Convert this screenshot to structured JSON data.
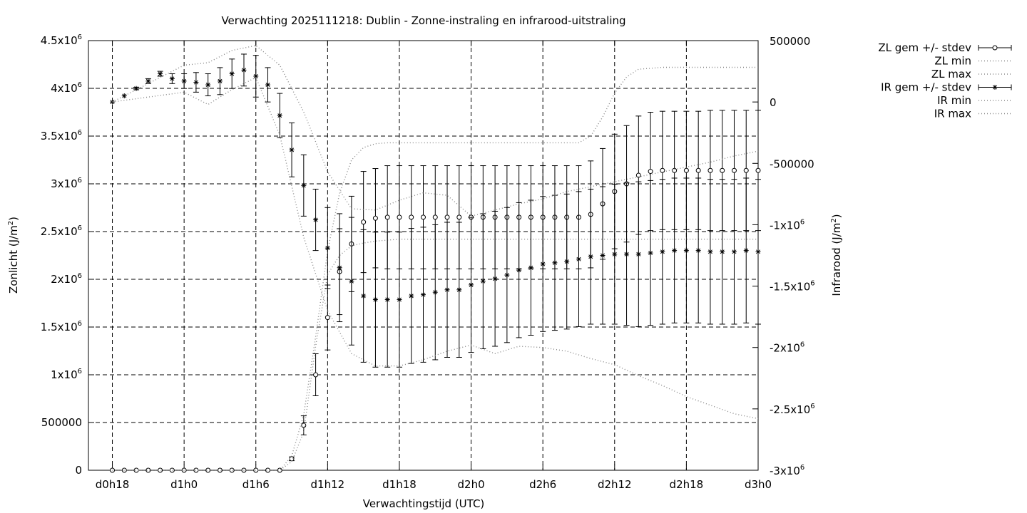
{
  "chart_data": {
    "type": "line",
    "title": "Verwachting 2025111218: Dublin - Zonne-instraling en infrarood-uitstraling",
    "xlabel": "Verwachtingstijd (UTC)",
    "ylabel": "Zonlicht (J/m²)",
    "y2label": "Infrarood (J/m²)",
    "x_unit": "hours since forecast start (d0h18 = 0)",
    "xlim": [
      -2,
      54
    ],
    "ylim": [
      0,
      4500000
    ],
    "y2lim": [
      -3000000,
      500000
    ],
    "grid": true,
    "legend_position": "top-right outside",
    "x_ticks": [
      {
        "v": 0,
        "label": "d0h18"
      },
      {
        "v": 6,
        "label": "d1h0"
      },
      {
        "v": 12,
        "label": "d1h6"
      },
      {
        "v": 18,
        "label": "d1h12"
      },
      {
        "v": 24,
        "label": "d1h18"
      },
      {
        "v": 30,
        "label": "d2h0"
      },
      {
        "v": 36,
        "label": "d2h6"
      },
      {
        "v": 42,
        "label": "d2h12"
      },
      {
        "v": 48,
        "label": "d2h18"
      },
      {
        "v": 54,
        "label": "d3h0"
      }
    ],
    "y_ticks": [
      {
        "v": 0,
        "base": "0",
        "exp": ""
      },
      {
        "v": 500000,
        "base": "500000",
        "exp": ""
      },
      {
        "v": 1000000,
        "base": "1x10",
        "exp": "6"
      },
      {
        "v": 1500000,
        "base": "1.5x10",
        "exp": "6"
      },
      {
        "v": 2000000,
        "base": "2x10",
        "exp": "6"
      },
      {
        "v": 2500000,
        "base": "2.5x10",
        "exp": "6"
      },
      {
        "v": 3000000,
        "base": "3x10",
        "exp": "6"
      },
      {
        "v": 3500000,
        "base": "3.5x10",
        "exp": "6"
      },
      {
        "v": 4000000,
        "base": "4x10",
        "exp": "6"
      },
      {
        "v": 4500000,
        "base": "4.5x10",
        "exp": "6"
      }
    ],
    "y2_ticks": [
      {
        "v": 500000,
        "base": "500000",
        "exp": ""
      },
      {
        "v": 0,
        "base": "0",
        "exp": ""
      },
      {
        "v": -500000,
        "base": "-500000",
        "exp": ""
      },
      {
        "v": -1000000,
        "base": "-1x10",
        "exp": "6"
      },
      {
        "v": -1500000,
        "base": "-1.5x10",
        "exp": "6"
      },
      {
        "v": -2000000,
        "base": "-2x10",
        "exp": "6"
      },
      {
        "v": -2500000,
        "base": "-2.5x10",
        "exp": "6"
      },
      {
        "v": -3000000,
        "base": "-3x10",
        "exp": "6"
      }
    ],
    "series": [
      {
        "name": "ZL gem +/- stdev",
        "axis": "y",
        "marker": "circle",
        "x": [
          0,
          1,
          2,
          3,
          4,
          5,
          6,
          7,
          8,
          9,
          10,
          11,
          12,
          13,
          14,
          15,
          16,
          17,
          18,
          19,
          20,
          21,
          22,
          23,
          24,
          25,
          26,
          27,
          28,
          29,
          30,
          31,
          32,
          33,
          34,
          35,
          36,
          37,
          38,
          39,
          40,
          41,
          42,
          43,
          44,
          45,
          46,
          47,
          48,
          49,
          50,
          51,
          52,
          53,
          54
        ],
        "y": [
          0,
          0,
          0,
          0,
          0,
          0,
          0,
          0,
          0,
          0,
          0,
          0,
          0,
          0,
          0,
          120000,
          470000,
          1000000,
          1600000,
          2080000,
          2370000,
          2600000,
          2640000,
          2650000,
          2650000,
          2650000,
          2650000,
          2650000,
          2650000,
          2650000,
          2650000,
          2650000,
          2650000,
          2650000,
          2650000,
          2650000,
          2650000,
          2650000,
          2650000,
          2650000,
          2680000,
          2790000,
          2920000,
          3000000,
          3090000,
          3130000,
          3140000,
          3140000,
          3140000,
          3140000,
          3140000,
          3140000,
          3140000,
          3140000,
          3140000
        ],
        "stdev": [
          0,
          0,
          0,
          0,
          0,
          0,
          0,
          0,
          0,
          0,
          0,
          0,
          0,
          0,
          0,
          20000,
          100000,
          220000,
          340000,
          450000,
          500000,
          530000,
          520000,
          540000,
          540000,
          540000,
          540000,
          540000,
          540000,
          540000,
          540000,
          540000,
          540000,
          540000,
          540000,
          540000,
          540000,
          540000,
          540000,
          540000,
          560000,
          580000,
          600000,
          610000,
          620000,
          620000,
          620000,
          620000,
          620000,
          620000,
          630000,
          630000,
          630000,
          630000,
          630000
        ]
      },
      {
        "name": "ZL min",
        "axis": "y",
        "style": "dotted",
        "x": [
          0,
          13,
          14,
          15,
          16,
          17,
          18,
          19,
          20,
          21,
          22,
          24,
          30,
          36,
          42,
          48,
          54
        ],
        "y": [
          0,
          0,
          0,
          90000,
          400000,
          1300000,
          2050000,
          2250000,
          2350000,
          2380000,
          2400000,
          2420000,
          2420000,
          2420000,
          2420000,
          2420000,
          2420000
        ]
      },
      {
        "name": "ZL max",
        "axis": "y",
        "style": "dotted",
        "x": [
          0,
          13,
          14,
          15,
          16,
          17,
          18,
          19,
          20,
          21,
          22,
          23,
          24,
          30,
          36,
          39,
          40,
          41,
          42,
          43,
          44,
          46,
          48,
          54
        ],
        "y": [
          0,
          0,
          0,
          150000,
          580000,
          1400000,
          2300000,
          2900000,
          3250000,
          3380000,
          3420000,
          3430000,
          3430000,
          3430000,
          3430000,
          3430000,
          3500000,
          3700000,
          3950000,
          4120000,
          4200000,
          4220000,
          4220000,
          4220000
        ]
      },
      {
        "name": "IR gem +/- stdev",
        "axis": "y2",
        "marker": "star",
        "x": [
          0,
          1,
          2,
          3,
          4,
          5,
          6,
          7,
          8,
          9,
          10,
          11,
          12,
          13,
          14,
          15,
          16,
          17,
          18,
          19,
          20,
          21,
          22,
          23,
          24,
          25,
          26,
          27,
          28,
          29,
          30,
          31,
          32,
          33,
          34,
          35,
          36,
          37,
          38,
          39,
          40,
          41,
          42,
          43,
          44,
          45,
          46,
          47,
          48,
          49,
          50,
          51,
          52,
          53,
          54
        ],
        "y": [
          0,
          50000,
          110000,
          170000,
          230000,
          190000,
          170000,
          160000,
          140000,
          170000,
          230000,
          260000,
          210000,
          140000,
          -110000,
          -390000,
          -680000,
          -960000,
          -1190000,
          -1350000,
          -1460000,
          -1580000,
          -1610000,
          -1610000,
          -1610000,
          -1580000,
          -1570000,
          -1550000,
          -1530000,
          -1530000,
          -1490000,
          -1460000,
          -1440000,
          -1410000,
          -1370000,
          -1350000,
          -1320000,
          -1310000,
          -1300000,
          -1280000,
          -1260000,
          -1250000,
          -1240000,
          -1240000,
          -1240000,
          -1230000,
          -1220000,
          -1210000,
          -1210000,
          -1210000,
          -1220000,
          -1220000,
          -1220000,
          -1210000,
          -1220000
        ],
        "stdev": [
          0,
          0,
          10000,
          20000,
          20000,
          40000,
          60000,
          80000,
          90000,
          110000,
          120000,
          130000,
          170000,
          140000,
          180000,
          220000,
          250000,
          250000,
          330000,
          440000,
          520000,
          540000,
          550000,
          550000,
          550000,
          550000,
          550000,
          550000,
          550000,
          550000,
          550000,
          550000,
          550000,
          550000,
          550000,
          550000,
          550000,
          550000,
          550000,
          550000,
          550000,
          560000,
          570000,
          580000,
          590000,
          590000,
          590000,
          590000,
          590000,
          590000,
          590000,
          590000,
          590000,
          590000,
          590000
        ]
      },
      {
        "name": "IR min",
        "axis": "y2",
        "style": "dotted",
        "x": [
          0,
          6,
          8,
          10,
          12,
          14,
          16,
          18,
          20,
          22,
          24,
          26,
          28,
          30,
          32,
          34,
          36,
          38,
          40,
          42,
          44,
          46,
          48,
          50,
          52,
          54
        ],
        "y": [
          0,
          80000,
          -20000,
          100000,
          200000,
          -270000,
          -1100000,
          -1700000,
          -2050000,
          -2150000,
          -2150000,
          -2100000,
          -2030000,
          -1980000,
          -2050000,
          -1990000,
          -2000000,
          -2030000,
          -2090000,
          -2140000,
          -2230000,
          -2310000,
          -2400000,
          -2470000,
          -2540000,
          -2580000
        ]
      },
      {
        "name": "IR max",
        "axis": "y2",
        "style": "dotted",
        "x": [
          0,
          6,
          8,
          10,
          12,
          14,
          16,
          18,
          20,
          22,
          24,
          26,
          28,
          30,
          32,
          34,
          36,
          38,
          40,
          42,
          44,
          46,
          48,
          50,
          52,
          54
        ],
        "y": [
          0,
          300000,
          320000,
          420000,
          460000,
          300000,
          -80000,
          -570000,
          -870000,
          -880000,
          -800000,
          -740000,
          -760000,
          -930000,
          -880000,
          -830000,
          -790000,
          -730000,
          -690000,
          -650000,
          -610000,
          -570000,
          -530000,
          -490000,
          -440000,
          -400000
        ]
      }
    ]
  }
}
